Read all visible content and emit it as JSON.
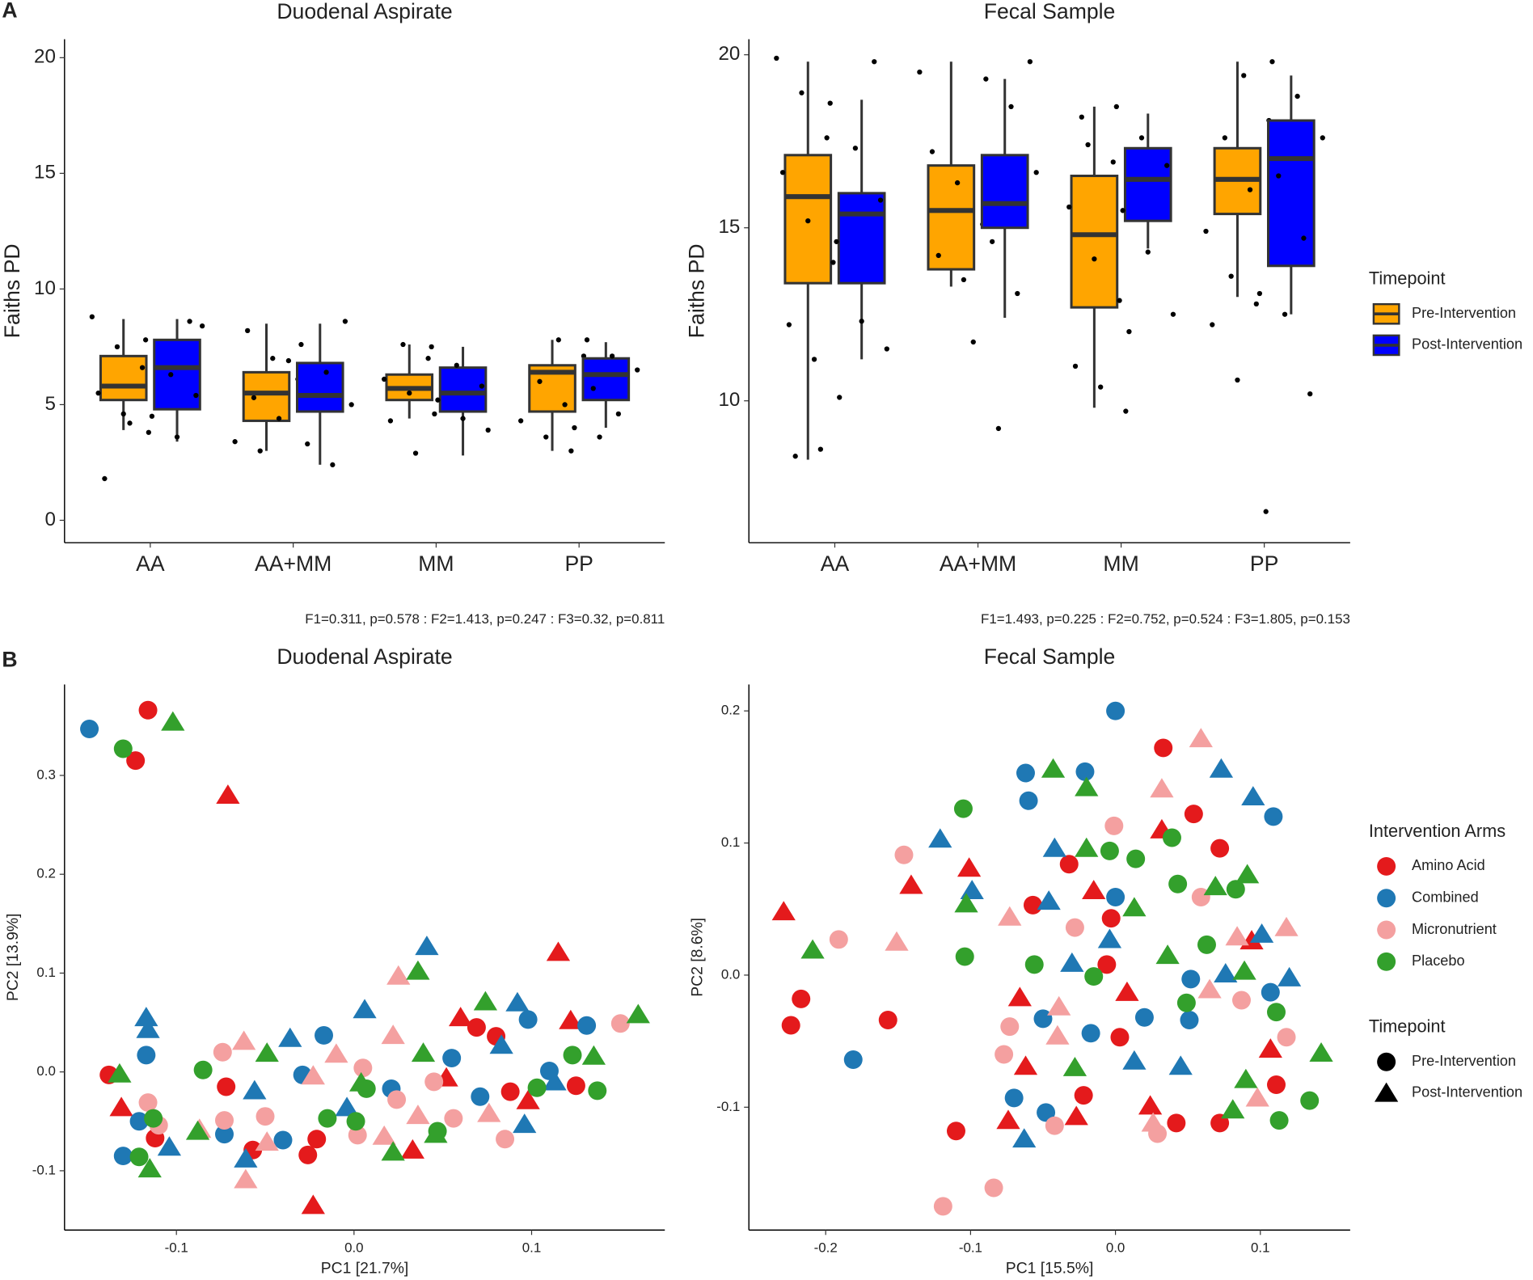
{
  "panel_labels": [
    "A",
    "B"
  ],
  "chart_data": [
    {
      "type": "box",
      "title": "Duodenal Aspirate",
      "y_label": "Faiths PD",
      "annotation": "F1=0.311, p=0.578 : F2=1.413, p=0.247 : F3=0.32, p=0.811",
      "categories": [
        "AA",
        "AA+MM",
        "MM",
        "PP"
      ],
      "ylim": [
        -0.97,
        20.8
      ],
      "yticks": [
        0,
        5,
        10,
        15,
        20
      ],
      "series": [
        {
          "name": "Pre-Intervention",
          "color": "#FFA500",
          "boxes": [
            {
              "low": 3.9,
              "q1": 5.2,
              "median": 5.8,
              "q3": 7.1,
              "high": 8.7,
              "points": [
                8.8,
                7.5,
                6.6,
                5.5,
                4.6,
                3.8,
                1.8,
                4.2
              ]
            },
            {
              "low": 3.0,
              "q1": 4.3,
              "median": 5.5,
              "q3": 6.4,
              "high": 8.5,
              "points": [
                8.2,
                7.0,
                6.1,
                5.3,
                4.4,
                3.4,
                3.0
              ]
            },
            {
              "low": 4.4,
              "q1": 5.2,
              "median": 5.7,
              "q3": 6.3,
              "high": 7.6,
              "points": [
                7.6,
                7.0,
                6.1,
                5.5,
                4.6,
                4.3,
                2.9
              ]
            },
            {
              "low": 3.0,
              "q1": 4.7,
              "median": 6.4,
              "q3": 6.7,
              "high": 7.8,
              "points": [
                7.8,
                7.1,
                6.0,
                5.0,
                4.3,
                3.6,
                3.0
              ]
            }
          ]
        },
        {
          "name": "Post-Intervention",
          "color": "#0000FF",
          "boxes": [
            {
              "low": 3.4,
              "q1": 4.8,
              "median": 6.6,
              "q3": 7.8,
              "high": 8.7,
              "points": [
                8.6,
                7.8,
                6.3,
                5.4,
                4.5,
                3.6,
                8.4
              ]
            },
            {
              "low": 2.4,
              "q1": 4.7,
              "median": 5.4,
              "q3": 6.8,
              "high": 8.5,
              "points": [
                8.6,
                7.6,
                6.4,
                5.0,
                3.3,
                2.4,
                6.9
              ]
            },
            {
              "low": 2.8,
              "q1": 4.7,
              "median": 5.5,
              "q3": 6.6,
              "high": 7.5,
              "points": [
                7.5,
                6.7,
                5.8,
                5.2,
                4.4,
                3.9
              ]
            },
            {
              "low": 4.0,
              "q1": 5.2,
              "median": 6.3,
              "q3": 7.0,
              "high": 7.7,
              "points": [
                7.8,
                7.1,
                6.5,
                5.7,
                4.6,
                4.0,
                3.6
              ]
            }
          ]
        }
      ]
    },
    {
      "type": "box",
      "title": "Fecal Sample",
      "y_label": "Faiths PD",
      "annotation": "F1=1.493, p=0.225 : F2=0.752, p=0.524 : F3=1.805, p=0.153",
      "categories": [
        "AA",
        "AA+MM",
        "MM",
        "PP"
      ],
      "ylim": [
        5.9,
        20.45
      ],
      "yticks": [
        10,
        15,
        20
      ],
      "legend": {
        "title": "Timepoint"
      },
      "series": [
        {
          "name": "Pre-Intervention",
          "color": "#FFA500",
          "boxes": [
            {
              "low": 8.3,
              "q1": 13.4,
              "median": 15.9,
              "q3": 17.1,
              "high": 19.8,
              "points": [
                19.9,
                18.9,
                17.6,
                16.6,
                15.2,
                14.0,
                12.2,
                11.2,
                10.1,
                8.4,
                8.6
              ]
            },
            {
              "low": 13.3,
              "q1": 13.8,
              "median": 15.5,
              "q3": 16.8,
              "high": 19.8,
              "points": [
                17.2,
                16.3,
                15.1,
                14.2,
                13.5,
                19.5
              ]
            },
            {
              "low": 9.8,
              "q1": 12.7,
              "median": 14.8,
              "q3": 16.5,
              "high": 18.5,
              "points": [
                17.4,
                16.9,
                15.6,
                14.1,
                12.9,
                11.0,
                10.4,
                9.7,
                18.2
              ]
            },
            {
              "low": 13.0,
              "q1": 15.4,
              "median": 16.4,
              "q3": 17.3,
              "high": 19.8,
              "points": [
                19.4,
                18.1,
                17.6,
                16.1,
                14.9,
                13.6,
                12.8,
                12.2,
                10.6
              ]
            }
          ]
        },
        {
          "name": "Post-Intervention",
          "color": "#0000FF",
          "boxes": [
            {
              "low": 11.2,
              "q1": 13.4,
              "median": 15.4,
              "q3": 16.0,
              "high": 18.7,
              "points": [
                19.8,
                18.6,
                17.3,
                15.8,
                14.6,
                12.3,
                11.5
              ]
            },
            {
              "low": 12.4,
              "q1": 15.0,
              "median": 15.7,
              "q3": 17.1,
              "high": 19.3,
              "points": [
                19.8,
                19.3,
                18.5,
                16.6,
                14.6,
                13.1,
                11.7,
                9.2
              ]
            },
            {
              "low": 14.4,
              "q1": 15.2,
              "median": 16.4,
              "q3": 17.3,
              "high": 18.3,
              "points": [
                18.5,
                17.6,
                16.8,
                15.5,
                14.3,
                12.5,
                12.0
              ]
            },
            {
              "low": 12.5,
              "q1": 13.9,
              "median": 17.0,
              "q3": 18.1,
              "high": 19.4,
              "points": [
                19.8,
                18.8,
                17.6,
                16.5,
                14.7,
                13.1,
                12.5,
                10.2,
                6.8
              ]
            }
          ]
        }
      ]
    },
    {
      "type": "scatter",
      "title": "Duodenal Aspirate",
      "x_label": "PC1 [21.7%]",
      "y_label": "PC2 [13.9%]",
      "xlim": [
        -0.163,
        0.175
      ],
      "ylim": [
        -0.16,
        0.392
      ],
      "xticks": [
        -0.1,
        {
          "value": 0,
          "label": "0.0"
        },
        0.1
      ],
      "yticks": [
        -0.1,
        {
          "value": 0,
          "label": "0.0"
        },
        0.1,
        0.2,
        0.3
      ],
      "series": [
        {
          "name": "Amino Acid",
          "color": "#E41A1C",
          "pre": {
            "x": [
              -0.116,
              -0.123,
              -0.138,
              -0.072,
              -0.057,
              -0.026,
              -0.021,
              0.069,
              0.08,
              0.088,
              0.125,
              -0.112
            ],
            "y": [
              0.366,
              0.315,
              -0.003,
              -0.015,
              -0.079,
              -0.084,
              -0.068,
              0.045,
              0.036,
              -0.02,
              -0.014,
              -0.067
            ]
          },
          "post": {
            "x": [
              -0.071,
              0.115,
              -0.023,
              0.052,
              0.06,
              0.098,
              0.033,
              0.122,
              -0.131
            ],
            "y": [
              0.28,
              0.121,
              -0.135,
              -0.006,
              0.055,
              -0.029,
              -0.079,
              0.052,
              -0.036
            ]
          }
        },
        {
          "name": "Combined",
          "color": "#1F78B4",
          "pre": {
            "x": [
              -0.149,
              -0.117,
              -0.13,
              -0.121,
              -0.073,
              -0.04,
              -0.017,
              -0.029,
              0.021,
              0.071,
              0.055,
              0.098,
              0.131,
              0.11
            ],
            "y": [
              0.347,
              0.017,
              -0.085,
              -0.05,
              -0.063,
              -0.069,
              0.037,
              -0.003,
              -0.017,
              -0.025,
              0.014,
              0.053,
              0.047,
              0.001
            ]
          },
          "post": {
            "x": [
              -0.117,
              -0.116,
              0.041,
              0.006,
              -0.036,
              -0.056,
              -0.061,
              -0.104,
              0.092,
              0.096,
              -0.004,
              0.113,
              0.083
            ],
            "y": [
              0.055,
              0.043,
              0.127,
              0.063,
              0.034,
              -0.019,
              -0.088,
              -0.076,
              0.07,
              -0.053,
              -0.036,
              -0.01,
              0.027
            ]
          }
        },
        {
          "name": "Micronutrient",
          "color": "#F4A0A0",
          "pre": {
            "x": [
              -0.116,
              -0.11,
              -0.074,
              -0.073,
              -0.05,
              0.005,
              0.002,
              0.024,
              0.045,
              0.056,
              0.085,
              0.15
            ],
            "y": [
              -0.031,
              -0.054,
              0.02,
              -0.049,
              -0.045,
              0.004,
              -0.064,
              -0.028,
              -0.01,
              -0.047,
              -0.068,
              0.049
            ]
          },
          "post": {
            "x": [
              0.025,
              0.022,
              -0.01,
              -0.062,
              -0.061,
              -0.049,
              0.036,
              0.076,
              0.017,
              -0.087,
              -0.023
            ],
            "y": [
              0.097,
              0.037,
              0.018,
              0.031,
              -0.109,
              -0.071,
              -0.044,
              -0.042,
              -0.065,
              -0.058,
              -0.004
            ]
          }
        },
        {
          "name": "Placebo",
          "color": "#33A02C",
          "pre": {
            "x": [
              -0.13,
              -0.113,
              -0.121,
              -0.085,
              -0.015,
              0.007,
              0.047,
              0.103,
              0.137,
              0.123,
              0.001
            ],
            "y": [
              0.327,
              -0.047,
              -0.086,
              0.002,
              -0.047,
              -0.017,
              -0.06,
              -0.016,
              -0.019,
              0.017,
              -0.05
            ]
          },
          "post": {
            "x": [
              -0.102,
              0.036,
              -0.132,
              -0.115,
              -0.088,
              -0.049,
              0.004,
              0.022,
              0.039,
              0.074,
              0.135,
              0.16,
              0.046
            ],
            "y": [
              0.354,
              0.102,
              -0.002,
              -0.098,
              -0.06,
              0.019,
              -0.011,
              -0.081,
              0.019,
              0.071,
              0.016,
              0.058,
              -0.063
            ]
          }
        }
      ]
    },
    {
      "type": "scatter",
      "title": "Fecal Sample",
      "x_label": "PC1 [15.5%]",
      "y_label": "PC2 [8.6%]",
      "xlim": [
        -0.253,
        0.162
      ],
      "ylim": [
        -0.193,
        0.22
      ],
      "xticks": [
        -0.2,
        -0.1,
        {
          "value": 0,
          "label": "0.0"
        },
        0.1
      ],
      "yticks": [
        -0.1,
        {
          "value": 0,
          "label": "0.0"
        },
        0.1,
        0.2
      ],
      "legend": {
        "title": "Intervention Arms"
      },
      "shape_legend": {
        "title": "Timepoint",
        "labels": [
          "Pre-Intervention",
          "Post-Intervention"
        ]
      },
      "series": [
        {
          "name": "Amino Acid",
          "color": "#E41A1C",
          "pre": {
            "x": [
              -0.224,
              -0.217,
              -0.157,
              -0.11,
              -0.057,
              -0.032,
              -0.003,
              0.033,
              0.054,
              0.072,
              0.042,
              0.072,
              0.111,
              -0.006,
              0.003,
              -0.022
            ],
            "y": [
              -0.038,
              -0.018,
              -0.034,
              -0.118,
              0.053,
              0.084,
              0.043,
              0.172,
              0.122,
              0.096,
              -0.112,
              -0.112,
              -0.083,
              0.008,
              -0.047,
              -0.091
            ]
          },
          "post": {
            "x": [
              -0.229,
              -0.141,
              -0.101,
              -0.066,
              -0.062,
              -0.015,
              0.008,
              0.032,
              0.024,
              0.094,
              -0.027,
              -0.074,
              0.107
            ],
            "y": [
              0.048,
              0.068,
              0.081,
              -0.017,
              -0.069,
              0.064,
              -0.013,
              0.11,
              -0.099,
              0.026,
              -0.107,
              -0.11,
              -0.056
            ]
          }
        },
        {
          "name": "Combined",
          "color": "#1F78B4",
          "pre": {
            "x": [
              0,
              -0.062,
              -0.06,
              -0.021,
              0,
              -0.181,
              -0.05,
              -0.017,
              0.02,
              0.052,
              0.051,
              0.109,
              0.107,
              -0.07,
              -0.048
            ],
            "y": [
              0.2,
              0.153,
              0.132,
              0.154,
              0.059,
              -0.064,
              -0.033,
              -0.044,
              -0.032,
              -0.003,
              -0.034,
              0.12,
              -0.013,
              -0.093,
              -0.104
            ]
          },
          "post": {
            "x": [
              -0.121,
              -0.099,
              -0.042,
              -0.046,
              0.073,
              0.095,
              -0.004,
              -0.03,
              0.076,
              0.12,
              0.013,
              0.045,
              -0.063,
              0.101
            ],
            "y": [
              0.103,
              0.064,
              0.096,
              0.056,
              0.156,
              0.135,
              0.027,
              0.009,
              0.001,
              -0.002,
              -0.065,
              -0.069,
              -0.124,
              0.031
            ]
          }
        },
        {
          "name": "Micronutrient",
          "color": "#F4A0A0",
          "pre": {
            "x": [
              -0.146,
              -0.191,
              -0.119,
              -0.084,
              -0.073,
              -0.028,
              -0.001,
              0.059,
              0.087,
              0.118,
              -0.042,
              0.029,
              -0.077
            ],
            "y": [
              0.091,
              0.027,
              -0.175,
              -0.161,
              -0.039,
              0.036,
              0.113,
              0.059,
              -0.019,
              -0.047,
              -0.114,
              -0.12,
              -0.06
            ]
          },
          "post": {
            "x": [
              -0.151,
              0.059,
              0.032,
              0.118,
              -0.039,
              -0.04,
              0.065,
              0.084,
              0.098,
              -0.073,
              0.026
            ],
            "y": [
              0.025,
              0.179,
              0.141,
              0.036,
              -0.024,
              -0.046,
              -0.011,
              0.029,
              -0.093,
              0.044,
              -0.112
            ]
          }
        },
        {
          "name": "Placebo",
          "color": "#33A02C",
          "pre": {
            "x": [
              -0.105,
              -0.104,
              -0.056,
              -0.004,
              0.014,
              0.043,
              0.039,
              0.063,
              0.083,
              0.049,
              0.111,
              0.134,
              0.113,
              -0.015
            ],
            "y": [
              0.126,
              0.014,
              0.008,
              0.094,
              0.088,
              0.069,
              0.104,
              0.023,
              0.065,
              -0.021,
              -0.028,
              -0.095,
              -0.11,
              -0.001
            ]
          },
          "post": {
            "x": [
              -0.209,
              -0.043,
              -0.02,
              -0.103,
              -0.02,
              0.013,
              0.036,
              0.069,
              0.091,
              0.089,
              0.142,
              0.09,
              0.081,
              -0.028
            ],
            "y": [
              0.019,
              0.156,
              0.142,
              0.054,
              0.096,
              0.051,
              0.015,
              0.067,
              0.076,
              0.003,
              -0.059,
              -0.079,
              -0.102,
              -0.07
            ]
          }
        }
      ]
    }
  ]
}
